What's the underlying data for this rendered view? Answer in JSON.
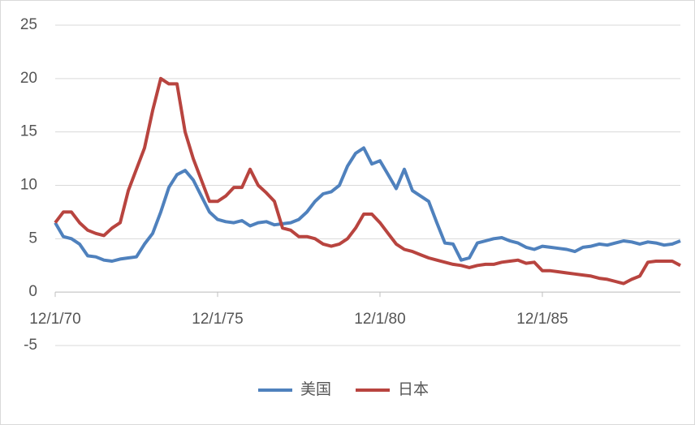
{
  "chart_data": {
    "type": "line",
    "categories": [
      "12/1/70",
      null,
      null,
      null,
      null,
      null,
      null,
      null,
      null,
      null,
      null,
      null,
      null,
      null,
      null,
      null,
      null,
      null,
      null,
      null,
      "12/1/75",
      null,
      null,
      null,
      null,
      null,
      null,
      null,
      null,
      null,
      null,
      null,
      null,
      null,
      null,
      null,
      null,
      null,
      null,
      null,
      "12/1/80",
      null,
      null,
      null,
      null,
      null,
      null,
      null,
      null,
      null,
      null,
      null,
      null,
      null,
      null,
      null,
      null,
      null,
      null,
      null,
      "12/1/85",
      null,
      null,
      null,
      null,
      null,
      null,
      null,
      null,
      null,
      null,
      null,
      null,
      null,
      null,
      null,
      null,
      null
    ],
    "series": [
      {
        "name": "美国",
        "color": "#4f81bd",
        "values": [
          6.5,
          5.2,
          5.0,
          4.5,
          3.4,
          3.3,
          3.0,
          2.9,
          3.1,
          3.2,
          3.3,
          4.5,
          5.5,
          7.5,
          9.8,
          11.0,
          11.4,
          10.5,
          9.0,
          7.5,
          6.8,
          6.6,
          6.5,
          6.7,
          6.2,
          6.5,
          6.6,
          6.3,
          6.4,
          6.5,
          6.8,
          7.5,
          8.5,
          9.2,
          9.4,
          10.0,
          11.8,
          13.0,
          13.5,
          12.0,
          12.3,
          11.0,
          9.7,
          11.5,
          9.5,
          9.0,
          8.5,
          6.5,
          4.6,
          4.5,
          3.0,
          3.2,
          4.6,
          4.8,
          5.0,
          5.1,
          4.8,
          4.6,
          4.2,
          4.0,
          4.3,
          4.2,
          4.1,
          4.0,
          3.8,
          4.2,
          4.3,
          4.5,
          4.4,
          4.6,
          4.8,
          4.7,
          4.5,
          4.7,
          4.6,
          4.4,
          4.5,
          4.8
        ]
      },
      {
        "name": "日本",
        "color": "#b8443f",
        "values": [
          6.5,
          7.5,
          7.5,
          6.5,
          5.8,
          5.5,
          5.3,
          6.0,
          6.5,
          9.5,
          11.5,
          13.5,
          17.0,
          20.0,
          19.5,
          19.5,
          15.0,
          12.5,
          10.5,
          8.5,
          8.5,
          9.0,
          9.8,
          9.8,
          11.5,
          10.0,
          9.3,
          8.5,
          6.0,
          5.8,
          5.2,
          5.2,
          5.0,
          4.5,
          4.3,
          4.5,
          5.0,
          6.0,
          7.3,
          7.3,
          6.5,
          5.5,
          4.5,
          4.0,
          3.8,
          3.5,
          3.2,
          3.0,
          2.8,
          2.6,
          2.5,
          2.3,
          2.5,
          2.6,
          2.6,
          2.8,
          2.9,
          3.0,
          2.7,
          2.8,
          2.0,
          2.0,
          1.9,
          1.8,
          1.7,
          1.6,
          1.5,
          1.3,
          1.2,
          1.0,
          0.8,
          1.2,
          1.5,
          2.8,
          2.9,
          2.9,
          2.9,
          2.5
        ]
      }
    ],
    "ylim": [
      -5,
      25
    ],
    "yticks": [
      -5,
      0,
      5,
      10,
      15,
      20,
      25
    ],
    "grid": true,
    "legend": "bottom"
  }
}
